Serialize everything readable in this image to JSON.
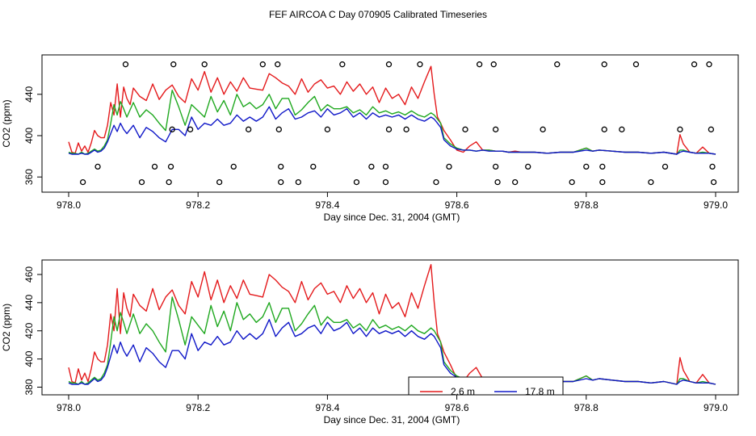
{
  "page_title": "FEF AIRCOA C  Day 070905  Calibrated Timeseries",
  "colors": {
    "red": "#e41a1c",
    "green": "#1fa81f",
    "blue": "#1018c8",
    "axis": "#000000"
  },
  "chart_data": [
    {
      "type": "line",
      "xlabel": "Day since Dec. 31, 2004 (GMT)",
      "ylabel": "CO2 (ppm)",
      "xlim": [
        978.0,
        979.0
      ],
      "ylim": [
        350,
        475
      ],
      "xticks": [
        978.0,
        978.2,
        978.4,
        978.6,
        978.8,
        979.0
      ],
      "xtick_labels": [
        "978.0",
        "978.2",
        "978.4",
        "978.6",
        "978.8",
        "979.0"
      ],
      "yticks": [
        360,
        400,
        440
      ],
      "ytick_labels": [
        "360",
        "400",
        "440"
      ],
      "markers_note": "open circles marking valve/sample events at fixed levels",
      "marker_points": [
        [
          978.088,
          469
        ],
        [
          978.162,
          469
        ],
        [
          978.21,
          469
        ],
        [
          978.3,
          469
        ],
        [
          978.323,
          469
        ],
        [
          978.423,
          469
        ],
        [
          978.495,
          469
        ],
        [
          978.543,
          469
        ],
        [
          978.635,
          469
        ],
        [
          978.657,
          469
        ],
        [
          978.755,
          469
        ],
        [
          978.828,
          469
        ],
        [
          978.877,
          469
        ],
        [
          978.967,
          469
        ],
        [
          978.99,
          469
        ],
        [
          978.16,
          406
        ],
        [
          978.188,
          406
        ],
        [
          978.278,
          406
        ],
        [
          978.325,
          406
        ],
        [
          978.4,
          406
        ],
        [
          978.495,
          406
        ],
        [
          978.522,
          406
        ],
        [
          978.613,
          406
        ],
        [
          978.66,
          406
        ],
        [
          978.733,
          406
        ],
        [
          978.828,
          406
        ],
        [
          978.855,
          406
        ],
        [
          978.945,
          406
        ],
        [
          978.993,
          406
        ],
        [
          978.045,
          370
        ],
        [
          978.133,
          370
        ],
        [
          978.158,
          370
        ],
        [
          978.255,
          370
        ],
        [
          978.328,
          370
        ],
        [
          978.378,
          370
        ],
        [
          978.468,
          370
        ],
        [
          978.49,
          370
        ],
        [
          978.588,
          370
        ],
        [
          978.66,
          370
        ],
        [
          978.71,
          370
        ],
        [
          978.8,
          370
        ],
        [
          978.825,
          370
        ],
        [
          978.922,
          370
        ],
        [
          978.995,
          370
        ],
        [
          978.022,
          355
        ],
        [
          978.113,
          355
        ],
        [
          978.155,
          355
        ],
        [
          978.233,
          355
        ],
        [
          978.328,
          355
        ],
        [
          978.355,
          355
        ],
        [
          978.445,
          355
        ],
        [
          978.49,
          355
        ],
        [
          978.568,
          355
        ],
        [
          978.663,
          355
        ],
        [
          978.69,
          355
        ],
        [
          978.778,
          355
        ],
        [
          978.825,
          355
        ],
        [
          978.9,
          355
        ],
        [
          978.997,
          355
        ]
      ],
      "series": [
        {
          "name": "2.6 m",
          "color": "#e41a1c"
        },
        {
          "name": "17.8 m",
          "color": "#1018c8"
        },
        {
          "name": "green",
          "color": "#1fa81f"
        }
      ]
    },
    {
      "type": "line",
      "xlabel": "Day since Dec. 31, 2004 (GMT)",
      "ylabel": "CO2 (ppm)",
      "xlim": [
        978.0,
        979.0
      ],
      "ylim": [
        378,
        468
      ],
      "xticks": [
        978.0,
        978.2,
        978.4,
        978.6,
        978.8,
        979.0
      ],
      "xtick_labels": [
        "978.0",
        "978.2",
        "978.4",
        "978.6",
        "978.8",
        "979.0"
      ],
      "yticks": [
        380,
        400,
        420,
        440,
        460
      ],
      "ytick_labels": [
        "380",
        "400",
        "420",
        "440",
        "460"
      ],
      "legend": {
        "position": "bottom-center",
        "entries": [
          {
            "label": "2.6 m",
            "color": "#e41a1c"
          },
          {
            "label": "17.8 m",
            "color": "#1018c8"
          }
        ]
      }
    }
  ],
  "series_data": {
    "x": [
      978.0,
      978.005,
      978.01,
      978.015,
      978.02,
      978.025,
      978.03,
      978.035,
      978.04,
      978.045,
      978.05,
      978.055,
      978.06,
      978.065,
      978.07,
      978.075,
      978.08,
      978.085,
      978.09,
      978.095,
      978.1,
      978.11,
      978.12,
      978.13,
      978.14,
      978.15,
      978.16,
      978.17,
      978.18,
      978.19,
      978.2,
      978.21,
      978.22,
      978.23,
      978.24,
      978.25,
      978.26,
      978.27,
      978.28,
      978.29,
      978.3,
      978.31,
      978.32,
      978.33,
      978.34,
      978.35,
      978.36,
      978.37,
      978.38,
      978.39,
      978.4,
      978.41,
      978.42,
      978.43,
      978.44,
      978.45,
      978.46,
      978.47,
      978.48,
      978.49,
      978.5,
      978.51,
      978.52,
      978.53,
      978.54,
      978.55,
      978.56,
      978.565,
      978.57,
      978.575,
      978.58,
      978.59,
      978.6,
      978.61,
      978.62,
      978.63,
      978.64,
      978.65,
      978.66,
      978.67,
      978.68,
      978.69,
      978.7,
      978.72,
      978.74,
      978.76,
      978.78,
      978.8,
      978.81,
      978.82,
      978.84,
      978.86,
      978.88,
      978.9,
      978.92,
      978.94,
      978.945,
      978.95,
      978.96,
      978.97,
      978.98,
      978.99,
      979.0
    ],
    "red": [
      394,
      384,
      383,
      393,
      385,
      390,
      384,
      393,
      405,
      400,
      398,
      398,
      410,
      432,
      420,
      450,
      418,
      447,
      436,
      430,
      446,
      438,
      434,
      450,
      435,
      444,
      449,
      438,
      432,
      455,
      444,
      462,
      442,
      456,
      440,
      452,
      443,
      456,
      446,
      445,
      444,
      460,
      456,
      451,
      448,
      440,
      455,
      442,
      450,
      454,
      446,
      448,
      440,
      452,
      443,
      450,
      440,
      447,
      432,
      446,
      436,
      440,
      430,
      447,
      436,
      452,
      467,
      440,
      418,
      412,
      405,
      396,
      386,
      384,
      390,
      394,
      386,
      386,
      385,
      385,
      384,
      385,
      384,
      384,
      383,
      384,
      384,
      388,
      385,
      386,
      385,
      384,
      384,
      383,
      384,
      382,
      401,
      392,
      384,
      383,
      389,
      383,
      382
    ],
    "green": [
      384,
      383,
      383,
      382,
      384,
      382,
      383,
      385,
      387,
      385,
      386,
      390,
      396,
      412,
      430,
      420,
      433,
      426,
      418,
      425,
      432,
      418,
      425,
      420,
      412,
      405,
      444,
      428,
      410,
      430,
      424,
      418,
      438,
      423,
      434,
      420,
      440,
      428,
      432,
      426,
      430,
      440,
      426,
      436,
      436,
      420,
      425,
      432,
      438,
      424,
      430,
      426,
      426,
      428,
      422,
      425,
      420,
      428,
      422,
      424,
      421,
      423,
      420,
      424,
      420,
      418,
      422,
      420,
      416,
      412,
      398,
      392,
      388,
      386,
      386,
      385,
      386,
      386,
      385,
      385,
      384,
      384,
      384,
      384,
      383,
      384,
      384,
      388,
      385,
      386,
      385,
      384,
      384,
      383,
      384,
      382,
      386,
      386,
      384,
      383,
      384,
      383,
      382
    ],
    "blue": [
      383,
      382,
      382,
      382,
      383,
      382,
      382,
      384,
      386,
      384,
      385,
      388,
      394,
      402,
      410,
      404,
      412,
      406,
      402,
      406,
      410,
      398,
      408,
      404,
      398,
      394,
      406,
      406,
      400,
      418,
      406,
      412,
      410,
      416,
      410,
      412,
      420,
      414,
      418,
      414,
      418,
      428,
      416,
      422,
      426,
      416,
      418,
      422,
      424,
      418,
      426,
      420,
      422,
      426,
      418,
      422,
      416,
      422,
      418,
      420,
      418,
      420,
      416,
      420,
      416,
      414,
      418,
      416,
      412,
      408,
      396,
      390,
      387,
      386,
      386,
      385,
      386,
      385,
      385,
      385,
      384,
      384,
      384,
      384,
      383,
      384,
      384,
      386,
      385,
      386,
      385,
      384,
      384,
      383,
      384,
      382,
      384,
      385,
      384,
      383,
      383,
      383,
      382
    ]
  }
}
